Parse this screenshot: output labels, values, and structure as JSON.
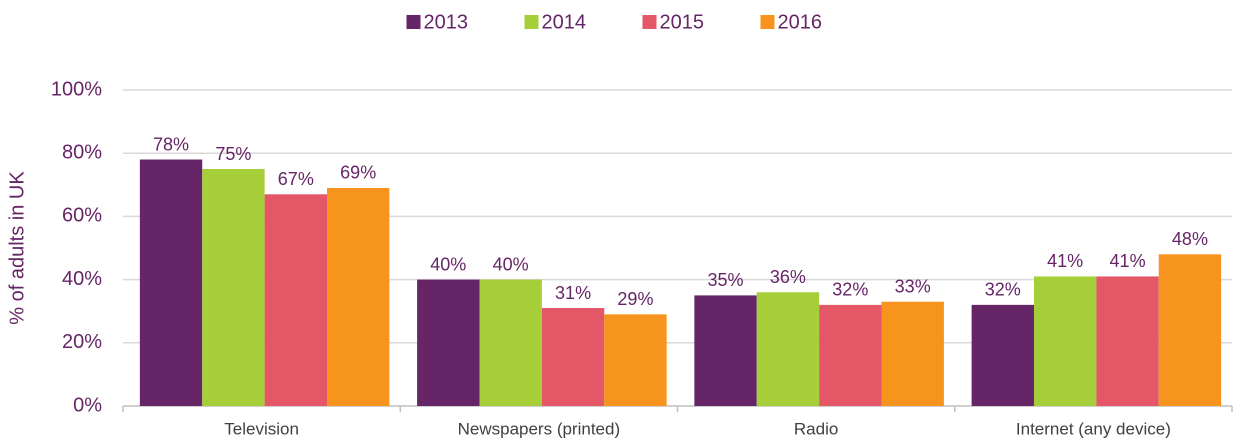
{
  "chart_data": {
    "type": "bar",
    "y_axis_label": "% of adults in UK",
    "categories": [
      "Television",
      "Newspapers (printed)",
      "Radio",
      "Internet (any device)"
    ],
    "series": [
      {
        "name": "2013",
        "color": "#662566",
        "values": [
          78,
          40,
          35,
          32
        ],
        "value_labels": [
          "78%",
          "40%",
          "35%",
          "32%"
        ]
      },
      {
        "name": "2014",
        "color": "#a6ce39",
        "values": [
          75,
          40,
          36,
          41
        ],
        "value_labels": [
          "75%",
          "40%",
          "36%",
          "41%"
        ]
      },
      {
        "name": "2015",
        "color": "#e45767",
        "values": [
          67,
          31,
          32,
          41
        ],
        "value_labels": [
          "67%",
          "31%",
          "32%",
          "41%"
        ]
      },
      {
        "name": "2016",
        "color": "#f7941d",
        "values": [
          69,
          29,
          33,
          48
        ],
        "value_labels": [
          "69%",
          "29%",
          "33%",
          "48%"
        ]
      }
    ],
    "ylim": [
      0,
      100
    ],
    "yticks": [
      {
        "value": 0,
        "label": "0%"
      },
      {
        "value": 20,
        "label": "20%"
      },
      {
        "value": 40,
        "label": "40%"
      },
      {
        "value": 60,
        "label": "60%"
      },
      {
        "value": 80,
        "label": "80%"
      },
      {
        "value": 100,
        "label": "100%"
      }
    ],
    "grid": true,
    "legend": "top"
  }
}
